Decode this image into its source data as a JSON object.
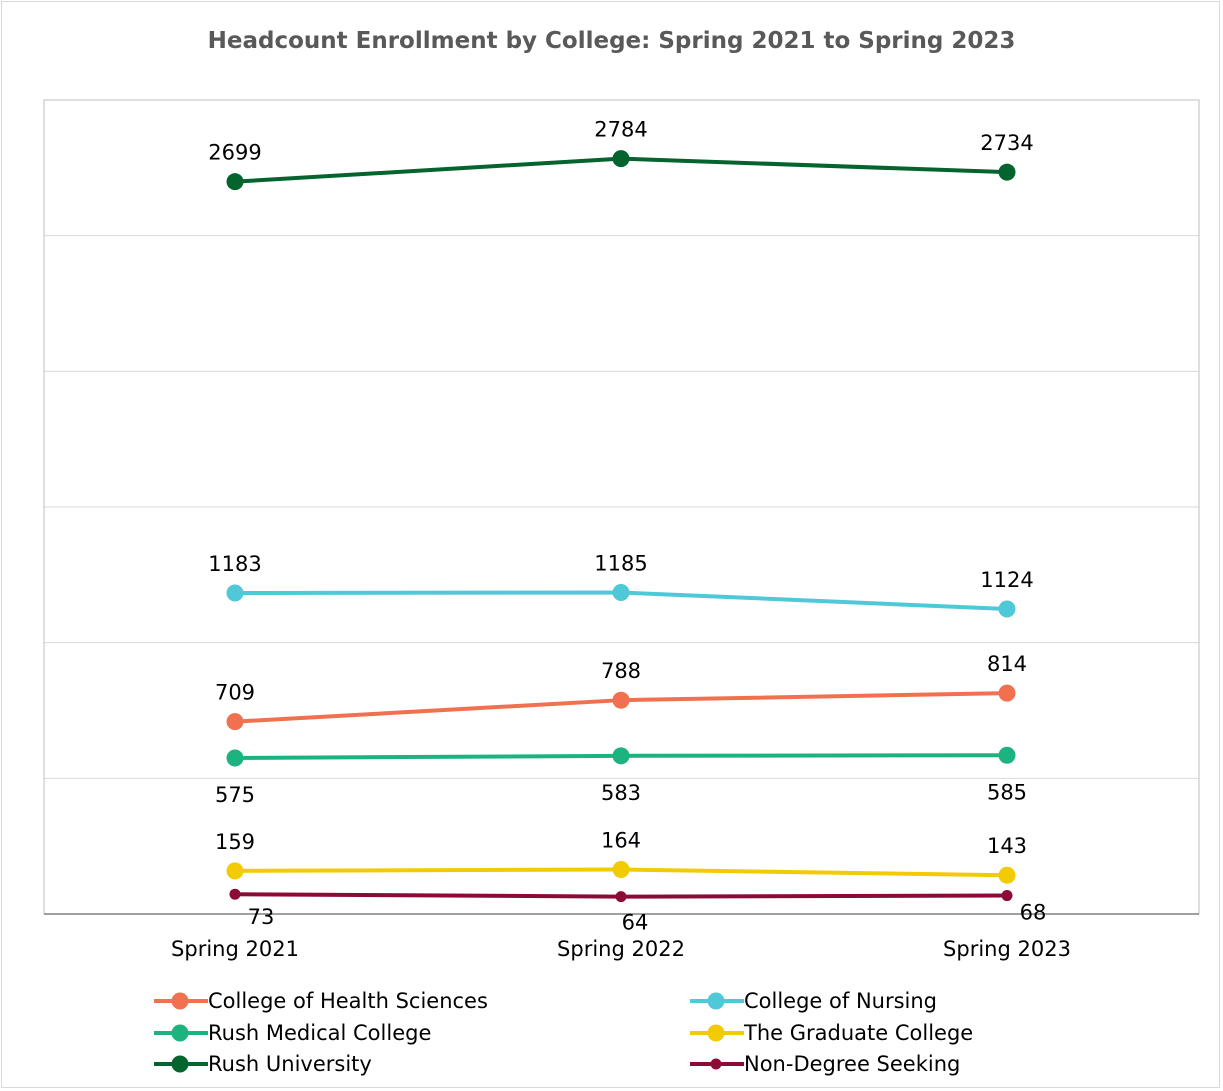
{
  "chart_data": {
    "type": "line",
    "title": "Headcount Enrollment by College: Spring 2021 to Spring 2023",
    "categories": [
      "Spring 2021",
      "Spring 2022",
      "Spring 2023"
    ],
    "xlabel": "",
    "ylabel": "",
    "ylim": [
      0,
      3000
    ],
    "y_ticks": [
      0,
      500,
      1000,
      1500,
      2000,
      2500,
      3000
    ],
    "y_tick_labels_visible": false,
    "grid": true,
    "legend_position": "bottom",
    "series": [
      {
        "name": "College of Health Sciences",
        "values": [
          709,
          788,
          814
        ],
        "color": "#f07050",
        "label_position": "above",
        "marker": "large"
      },
      {
        "name": "College of Nursing",
        "values": [
          1183,
          1185,
          1124
        ],
        "color": "#4fc8d8",
        "label_position": "above",
        "marker": "large"
      },
      {
        "name": "Rush Medical College",
        "values": [
          575,
          583,
          585
        ],
        "color": "#1db37f",
        "label_position": "below",
        "marker": "large"
      },
      {
        "name": "The Graduate College",
        "values": [
          159,
          164,
          143
        ],
        "color": "#f2cb05",
        "label_position": "above",
        "marker": "large"
      },
      {
        "name": "Rush University",
        "values": [
          2699,
          2784,
          2734
        ],
        "color": "#05632e",
        "label_position": "above",
        "marker": "large"
      },
      {
        "name": "Non-Degree Seeking",
        "values": [
          73,
          64,
          68
        ],
        "color": "#8b0a37",
        "label_position": "below",
        "marker": "small"
      }
    ]
  }
}
